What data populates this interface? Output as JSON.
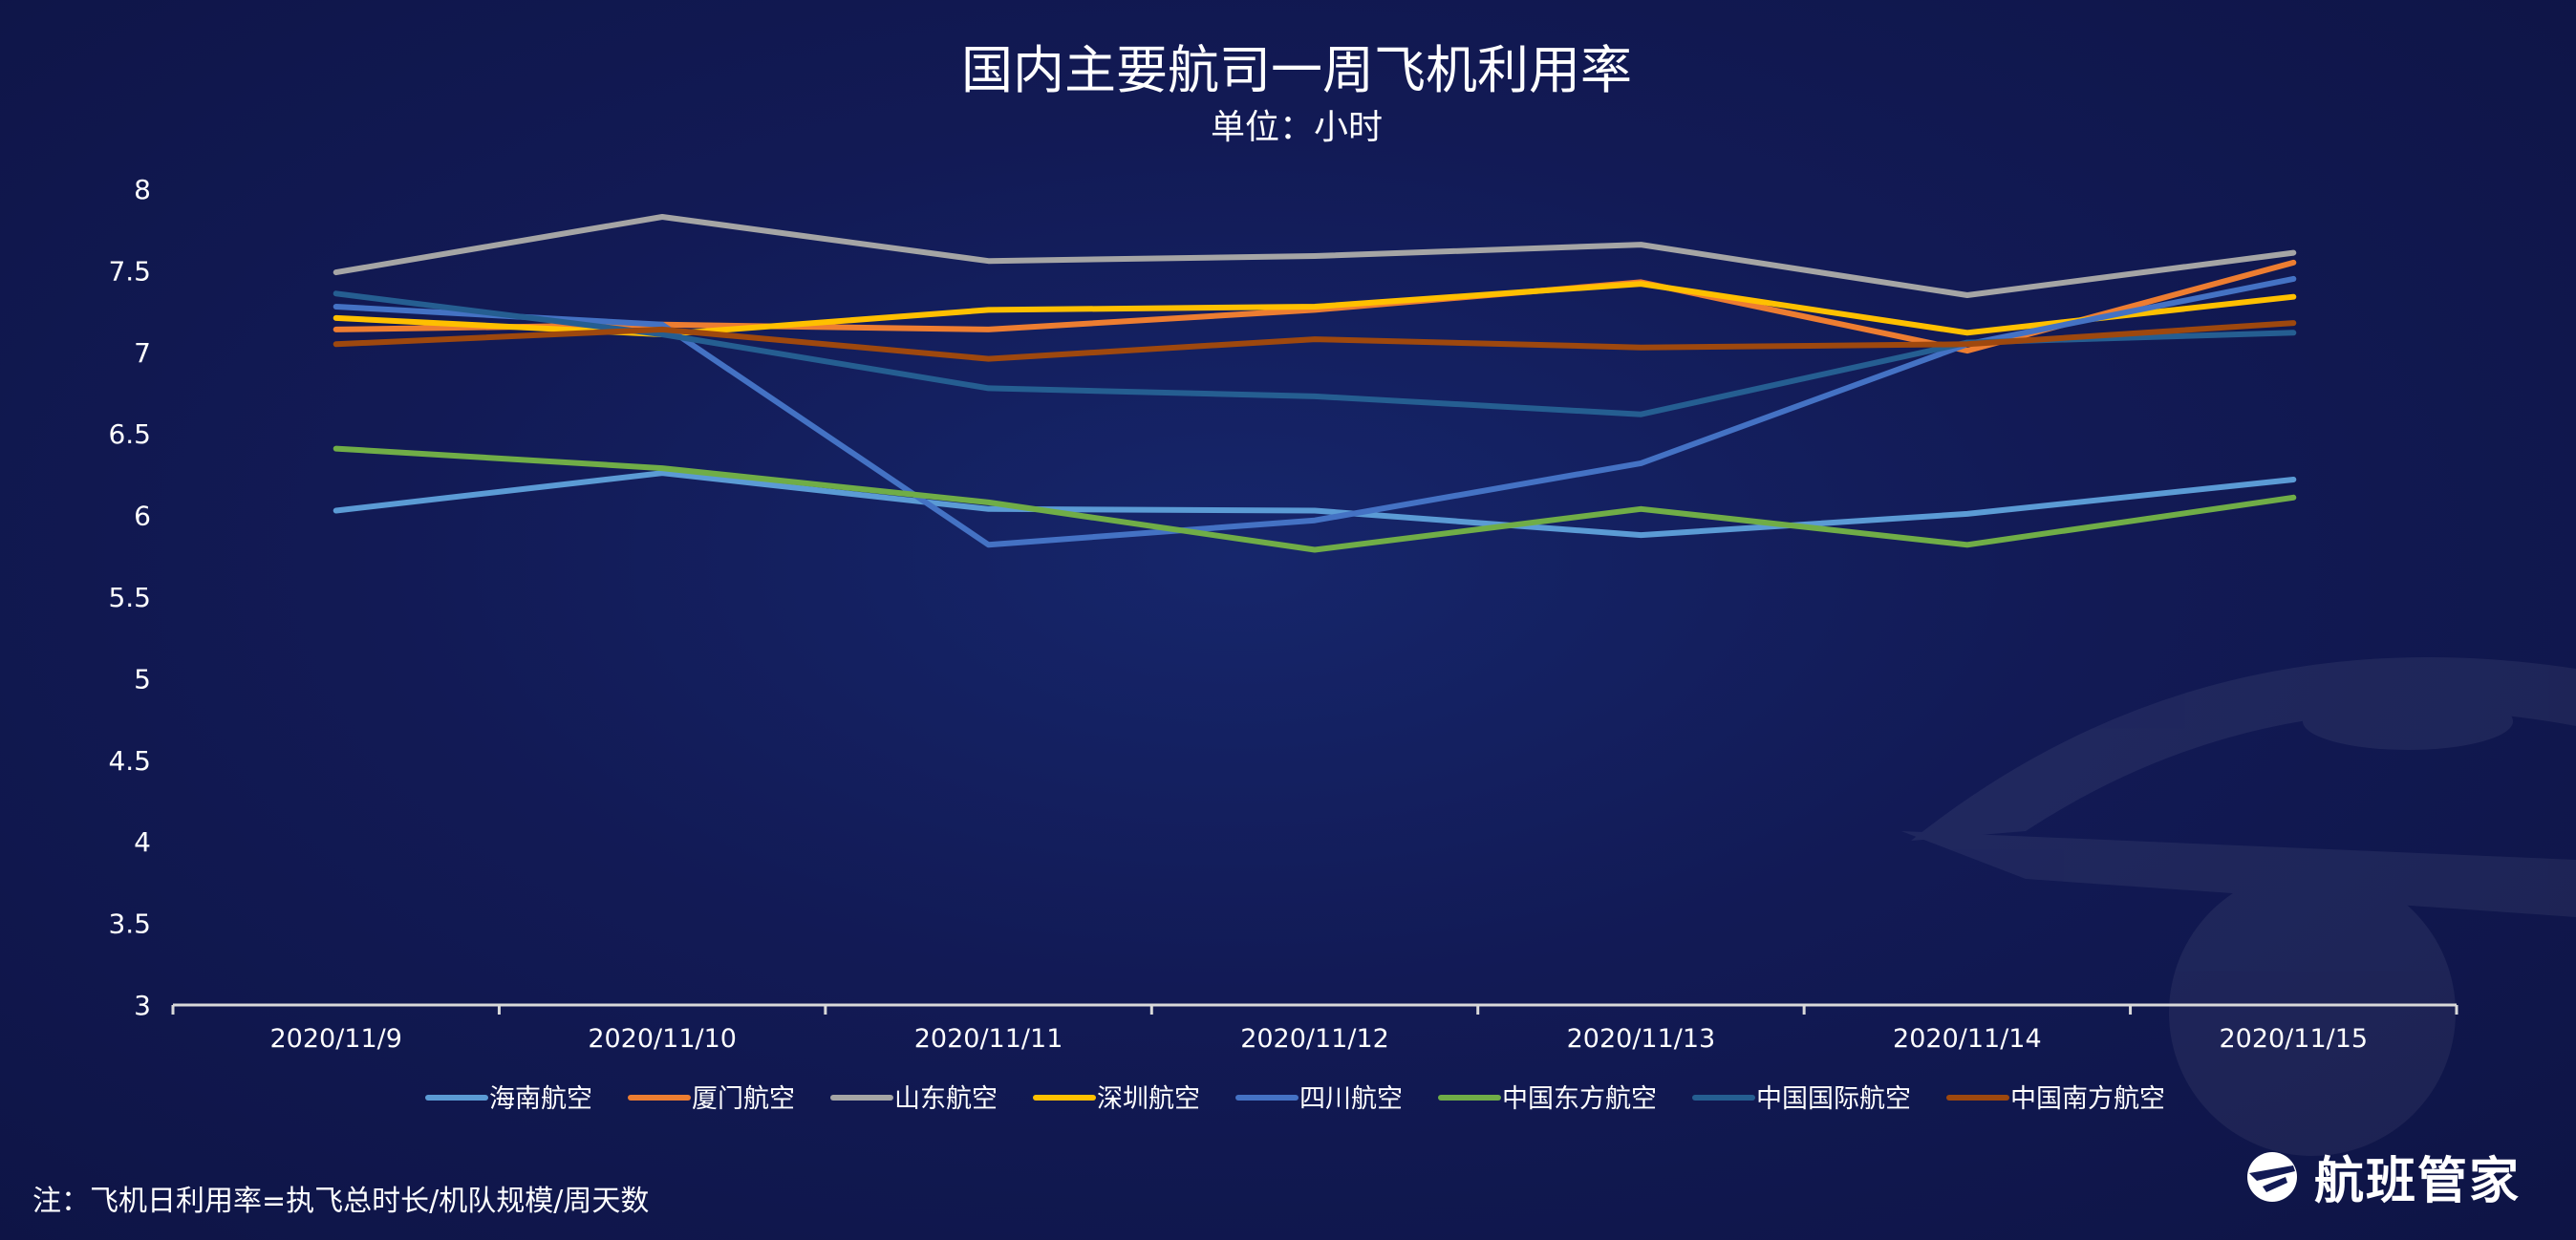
{
  "chart_data": {
    "type": "line",
    "title": "国内主要航司一周飞机利用率",
    "subtitle": "单位：小时",
    "ylim": [
      3,
      8
    ],
    "yticks": [
      "3",
      "3.5",
      "4",
      "4.5",
      "5",
      "5.5",
      "6",
      "6.5",
      "7",
      "7.5",
      "8"
    ],
    "categories": [
      "2020/11/9",
      "2020/11/10",
      "2020/11/11",
      "2020/11/12",
      "2020/11/13",
      "2020/11/14",
      "2020/11/15"
    ],
    "grid": false,
    "legend_position": "bottom",
    "series": [
      {
        "name": "海南航空",
        "color": "#5b9bd5",
        "values": [
          6.03,
          6.26,
          6.04,
          6.03,
          5.88,
          6.01,
          6.22
        ]
      },
      {
        "name": "厦门航空",
        "color": "#ed7d31",
        "values": [
          7.14,
          7.17,
          7.14,
          7.26,
          7.43,
          7.01,
          7.55
        ]
      },
      {
        "name": "山东航空",
        "color": "#a5a5a5",
        "values": [
          7.49,
          7.83,
          7.56,
          7.59,
          7.66,
          7.35,
          7.61
        ]
      },
      {
        "name": "深圳航空",
        "color": "#ffc000",
        "values": [
          7.21,
          7.11,
          7.26,
          7.28,
          7.42,
          7.12,
          7.34
        ]
      },
      {
        "name": "四川航空",
        "color": "#4472c4",
        "values": [
          7.28,
          7.17,
          5.82,
          5.97,
          6.32,
          7.05,
          7.45
        ]
      },
      {
        "name": "中国东方航空",
        "color": "#70ad47",
        "values": [
          6.41,
          6.29,
          6.08,
          5.79,
          6.04,
          5.82,
          6.11
        ]
      },
      {
        "name": "中国国际航空",
        "color": "#255e91",
        "values": [
          7.36,
          7.11,
          6.78,
          6.73,
          6.62,
          7.06,
          7.12
        ]
      },
      {
        "name": "中国南方航空",
        "color": "#9e480e",
        "values": [
          7.05,
          7.14,
          6.96,
          7.08,
          7.03,
          7.05,
          7.18
        ]
      }
    ]
  },
  "footer": {
    "note": "注：飞机日利用率=执飞总时长/机队规模/周天数",
    "brand_name": "航班管家",
    "brand_icon": "plane-globe-logo-icon"
  }
}
